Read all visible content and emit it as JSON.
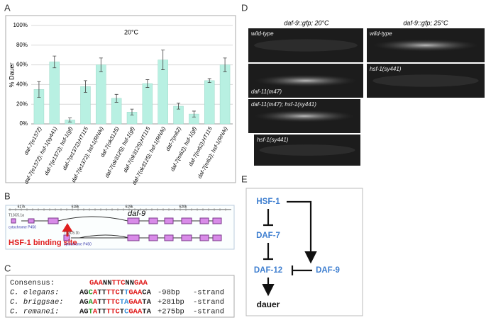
{
  "chart_data": {
    "type": "bar",
    "title": "20°C",
    "y_label": "% Dauer",
    "categories": [
      "daf-7(e1372)",
      "daf-7(e1372); hsf-1(sy441)",
      "daf-7(e1372); hsf-1(gf)",
      "daf-7(e1372);HT115",
      "daf-7(e1372); hsf-1(RNAi)",
      "daf-7(ok3125)",
      "daf-7(ok3125); hsf-1(gf)",
      "daf-7(ok3125);HT115",
      "daf-7(ok3125); hsf-1(RNAi)",
      "daf-7(m62)",
      "daf-7(m62); hsf-1(gf)",
      "daf-7(m62);HT115",
      "daf-7(m62); hsf-1(RNAi)"
    ],
    "values": [
      35,
      63,
      4,
      38,
      60,
      26,
      12,
      41,
      65,
      18,
      10,
      44,
      60
    ],
    "errors": [
      8,
      6,
      2,
      6,
      7,
      4,
      3,
      4,
      10,
      3,
      3,
      2,
      7
    ],
    "color": "#b8f0e2",
    "ylim": [
      0,
      100
    ],
    "yticks": [
      {
        "value": 0,
        "label": "0%"
      },
      {
        "value": 20,
        "label": "20%"
      },
      {
        "value": 40,
        "label": "40%"
      },
      {
        "value": 60,
        "label": "60%"
      },
      {
        "value": 80,
        "label": "80%"
      },
      {
        "value": 100,
        "label": "100%"
      }
    ],
    "grid": true
  },
  "panels": {
    "a": "A",
    "b": "B",
    "c": "C",
    "d": "D",
    "e": "E"
  },
  "gene_track": {
    "scale": [
      "617k",
      "618k",
      "619k",
      "620k"
    ],
    "gene": "daf-9",
    "transcripts": [
      "T13C5.1a",
      "T13C5.1b"
    ],
    "descriptions": [
      "cytochrome P450",
      "cytochrome P450"
    ],
    "binding_site": "HSF-1 binding site"
  },
  "alignment": {
    "rows": [
      {
        "species": "Consensus:",
        "segments": [
          {
            "text": "GAA",
            "color": "#e02020"
          },
          {
            "text": "NN",
            "color": "#222222"
          },
          {
            "text": "TTC",
            "color": "#e02020"
          },
          {
            "text": "NN",
            "color": "#222222"
          },
          {
            "text": "GAA",
            "color": "#e02020"
          }
        ]
      },
      {
        "species": "C. elegans:",
        "segments": [
          {
            "text": "AG",
            "color": "#222222"
          },
          {
            "text": "C",
            "color": "#2a9d2a"
          },
          {
            "text": "A",
            "color": "#e02020"
          },
          {
            "text": "TT",
            "color": "#222222"
          },
          {
            "text": "TTC",
            "color": "#e02020"
          },
          {
            "text": "T",
            "color": "#222222"
          },
          {
            "text": "T",
            "color": "#3a8fd8"
          },
          {
            "text": "GAA",
            "color": "#e02020"
          },
          {
            "text": "CA",
            "color": "#222222"
          }
        ],
        "position": "-98bp",
        "strand": "-strand"
      },
      {
        "species": "C. briggsae:",
        "segments": [
          {
            "text": "AG",
            "color": "#222222"
          },
          {
            "text": "A",
            "color": "#2a9d2a"
          },
          {
            "text": "A",
            "color": "#e02020"
          },
          {
            "text": "TT",
            "color": "#222222"
          },
          {
            "text": "TTC",
            "color": "#e02020"
          },
          {
            "text": "TA",
            "color": "#3a8fd8"
          },
          {
            "text": "GAA",
            "color": "#e02020"
          },
          {
            "text": "TA",
            "color": "#222222"
          }
        ],
        "position": "+281bp",
        "strand": "-strand"
      },
      {
        "species": "C. remanei:",
        "segments": [
          {
            "text": "AG",
            "color": "#222222"
          },
          {
            "text": "T",
            "color": "#2a9d2a"
          },
          {
            "text": "A",
            "color": "#e02020"
          },
          {
            "text": "TT",
            "color": "#222222"
          },
          {
            "text": "TTC",
            "color": "#e02020"
          },
          {
            "text": "T",
            "color": "#222222"
          },
          {
            "text": "C",
            "color": "#3a8fd8"
          },
          {
            "text": "GAA",
            "color": "#e02020"
          },
          {
            "text": "TA",
            "color": "#222222"
          }
        ],
        "position": "+275bp",
        "strand": "-strand"
      }
    ]
  },
  "images": {
    "headers": [
      "daf-9::gfp; 20°C",
      "daf-9::gfp; 25°C"
    ],
    "left": [
      "wild-type",
      "daf-11(m47)",
      "daf-11(m47); hsf-1(sy441)",
      "hsf-1(sy441)"
    ],
    "right": [
      "wild-type",
      "hsf-1(sy441)"
    ]
  },
  "pathway": {
    "nodes": [
      "HSF-1",
      "DAF-7",
      "DAF-12",
      "DAF-9",
      "dauer"
    ]
  }
}
